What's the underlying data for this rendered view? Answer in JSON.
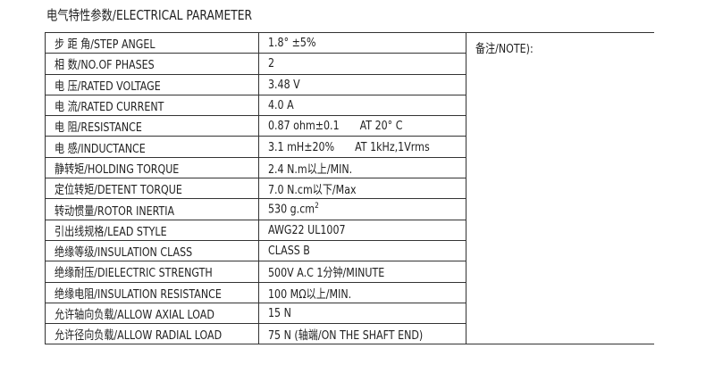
{
  "title": "电气特性参数/ELECTRICAL PARAMETER",
  "note_label": "备注/NOTE):",
  "rows": [
    {
      "param": "步 距 角/STEP ANGEL",
      "value": "1.8° ±5%",
      "extra": ""
    },
    {
      "param": "相    数/NO.OF PHASES",
      "value": "2",
      "extra": ""
    },
    {
      "param": "电    压/RATED VOLTAGE",
      "value": "3.48 V",
      "extra": ""
    },
    {
      "param": "电    流/RATED CURRENT",
      "value": "4.0 A",
      "extra": ""
    },
    {
      "param": "电    阻/RESISTANCE",
      "value": "0.87 ohm±0.1",
      "extra": "AT 20° C"
    },
    {
      "param": "电    感/INDUCTANCE",
      "value": "3.1 mH±20%",
      "extra": "AT 1kHz,1Vrms"
    },
    {
      "param": "静转矩/HOLDING TORQUE",
      "value": "2.4 N.m以上/MIN.",
      "extra": ""
    },
    {
      "param": "定位转矩/DETENT TORQUE",
      "value": "7.0 N.cm以下/Max",
      "extra": ""
    },
    {
      "param": "转动惯量/ROTOR INERTIA",
      "value": "530 g.cm",
      "sup": "2",
      "extra": ""
    },
    {
      "param": "引出线规格/LEAD STYLE",
      "value": "AWG22 UL1007",
      "extra": ""
    },
    {
      "param": "绝缘等级/INSULATION CLASS",
      "value": "CLASS B",
      "extra": ""
    },
    {
      "param": "绝缘耐压/DIELECTRIC STRENGTH",
      "value": "500V A.C 1分钟/MINUTE",
      "extra": ""
    },
    {
      "param": "绝缘电阻/INSULATION RESISTANCE",
      "value": "100 MΩ以上/MIN.",
      "extra": ""
    },
    {
      "param": "允许轴向负载/ALLOW AXIAL LOAD",
      "value": "15 N",
      "extra": ""
    },
    {
      "param": "允许径向负载/ALLOW RADIAL LOAD",
      "value": "75 N (轴端/ON THE SHAFT END)",
      "extra": ""
    }
  ]
}
